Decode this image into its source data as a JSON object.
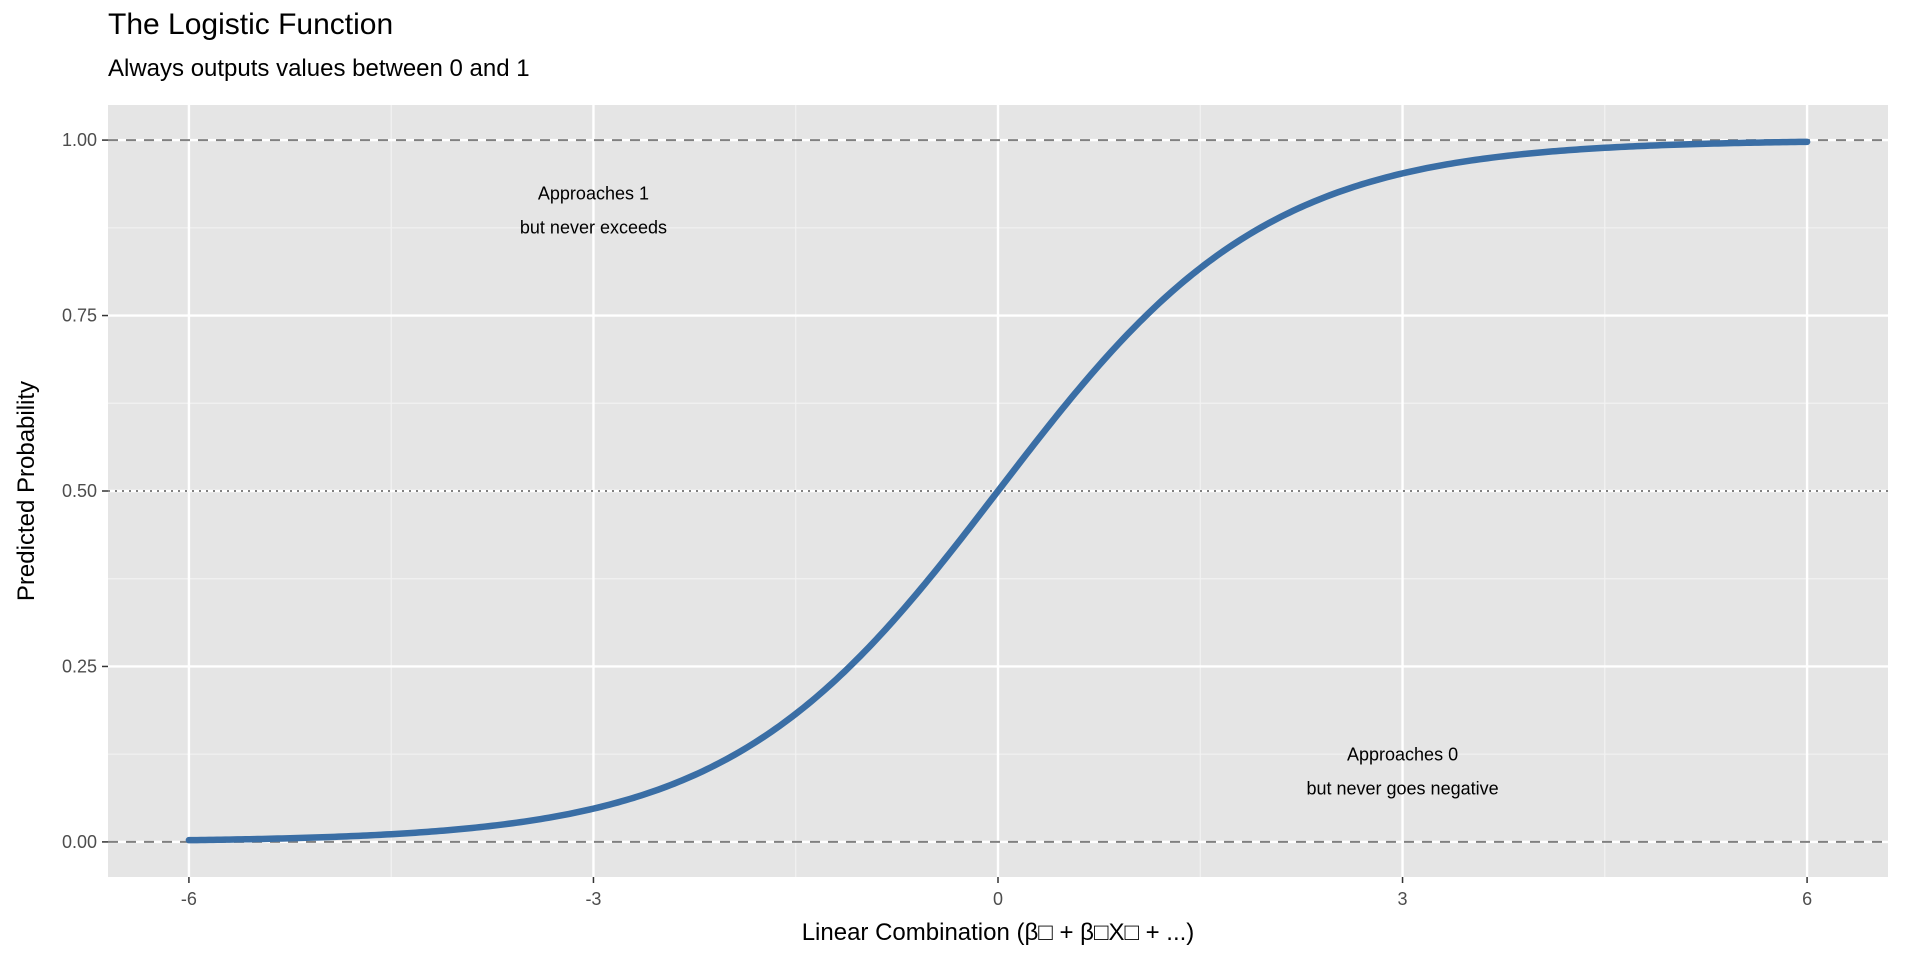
{
  "chart_data": {
    "type": "line",
    "title": "The Logistic Function",
    "subtitle": "Always outputs values between 0 and 1",
    "xlabel": "Linear Combination (β□ + β□X□ + ...)",
    "ylabel": "Predicted Probability",
    "xlim": [
      -6.6,
      6.6
    ],
    "ylim": [
      -0.05,
      1.05
    ],
    "xticks": [
      -6,
      -3,
      0,
      3,
      6
    ],
    "xtick_labels": [
      "-6",
      "-3",
      "0",
      "3",
      "6"
    ],
    "yticks": [
      0,
      0.25,
      0.5,
      0.75,
      1
    ],
    "ytick_labels": [
      "0.00",
      "0.25",
      "0.50",
      "0.75",
      "1.00"
    ],
    "grid": true,
    "series": [
      {
        "function": "1/(1+exp(-x))",
        "x_range": [
          -6,
          6
        ],
        "color": "#3a6ea5"
      }
    ],
    "reference_lines": [
      {
        "y": 1,
        "style": "dashed",
        "color": "#808080"
      },
      {
        "y": 0.5,
        "style": "dotted",
        "color": "#808080"
      },
      {
        "y": 0,
        "style": "dashed",
        "color": "#808080"
      }
    ],
    "annotations": [
      {
        "x": -3,
        "y": 0.9,
        "lines": [
          "Approaches 1",
          "but never exceeds"
        ]
      },
      {
        "x": 3,
        "y": 0.1,
        "lines": [
          "Approaches 0",
          "but never goes negative"
        ]
      }
    ],
    "panel_background": "#e5e5e5"
  }
}
